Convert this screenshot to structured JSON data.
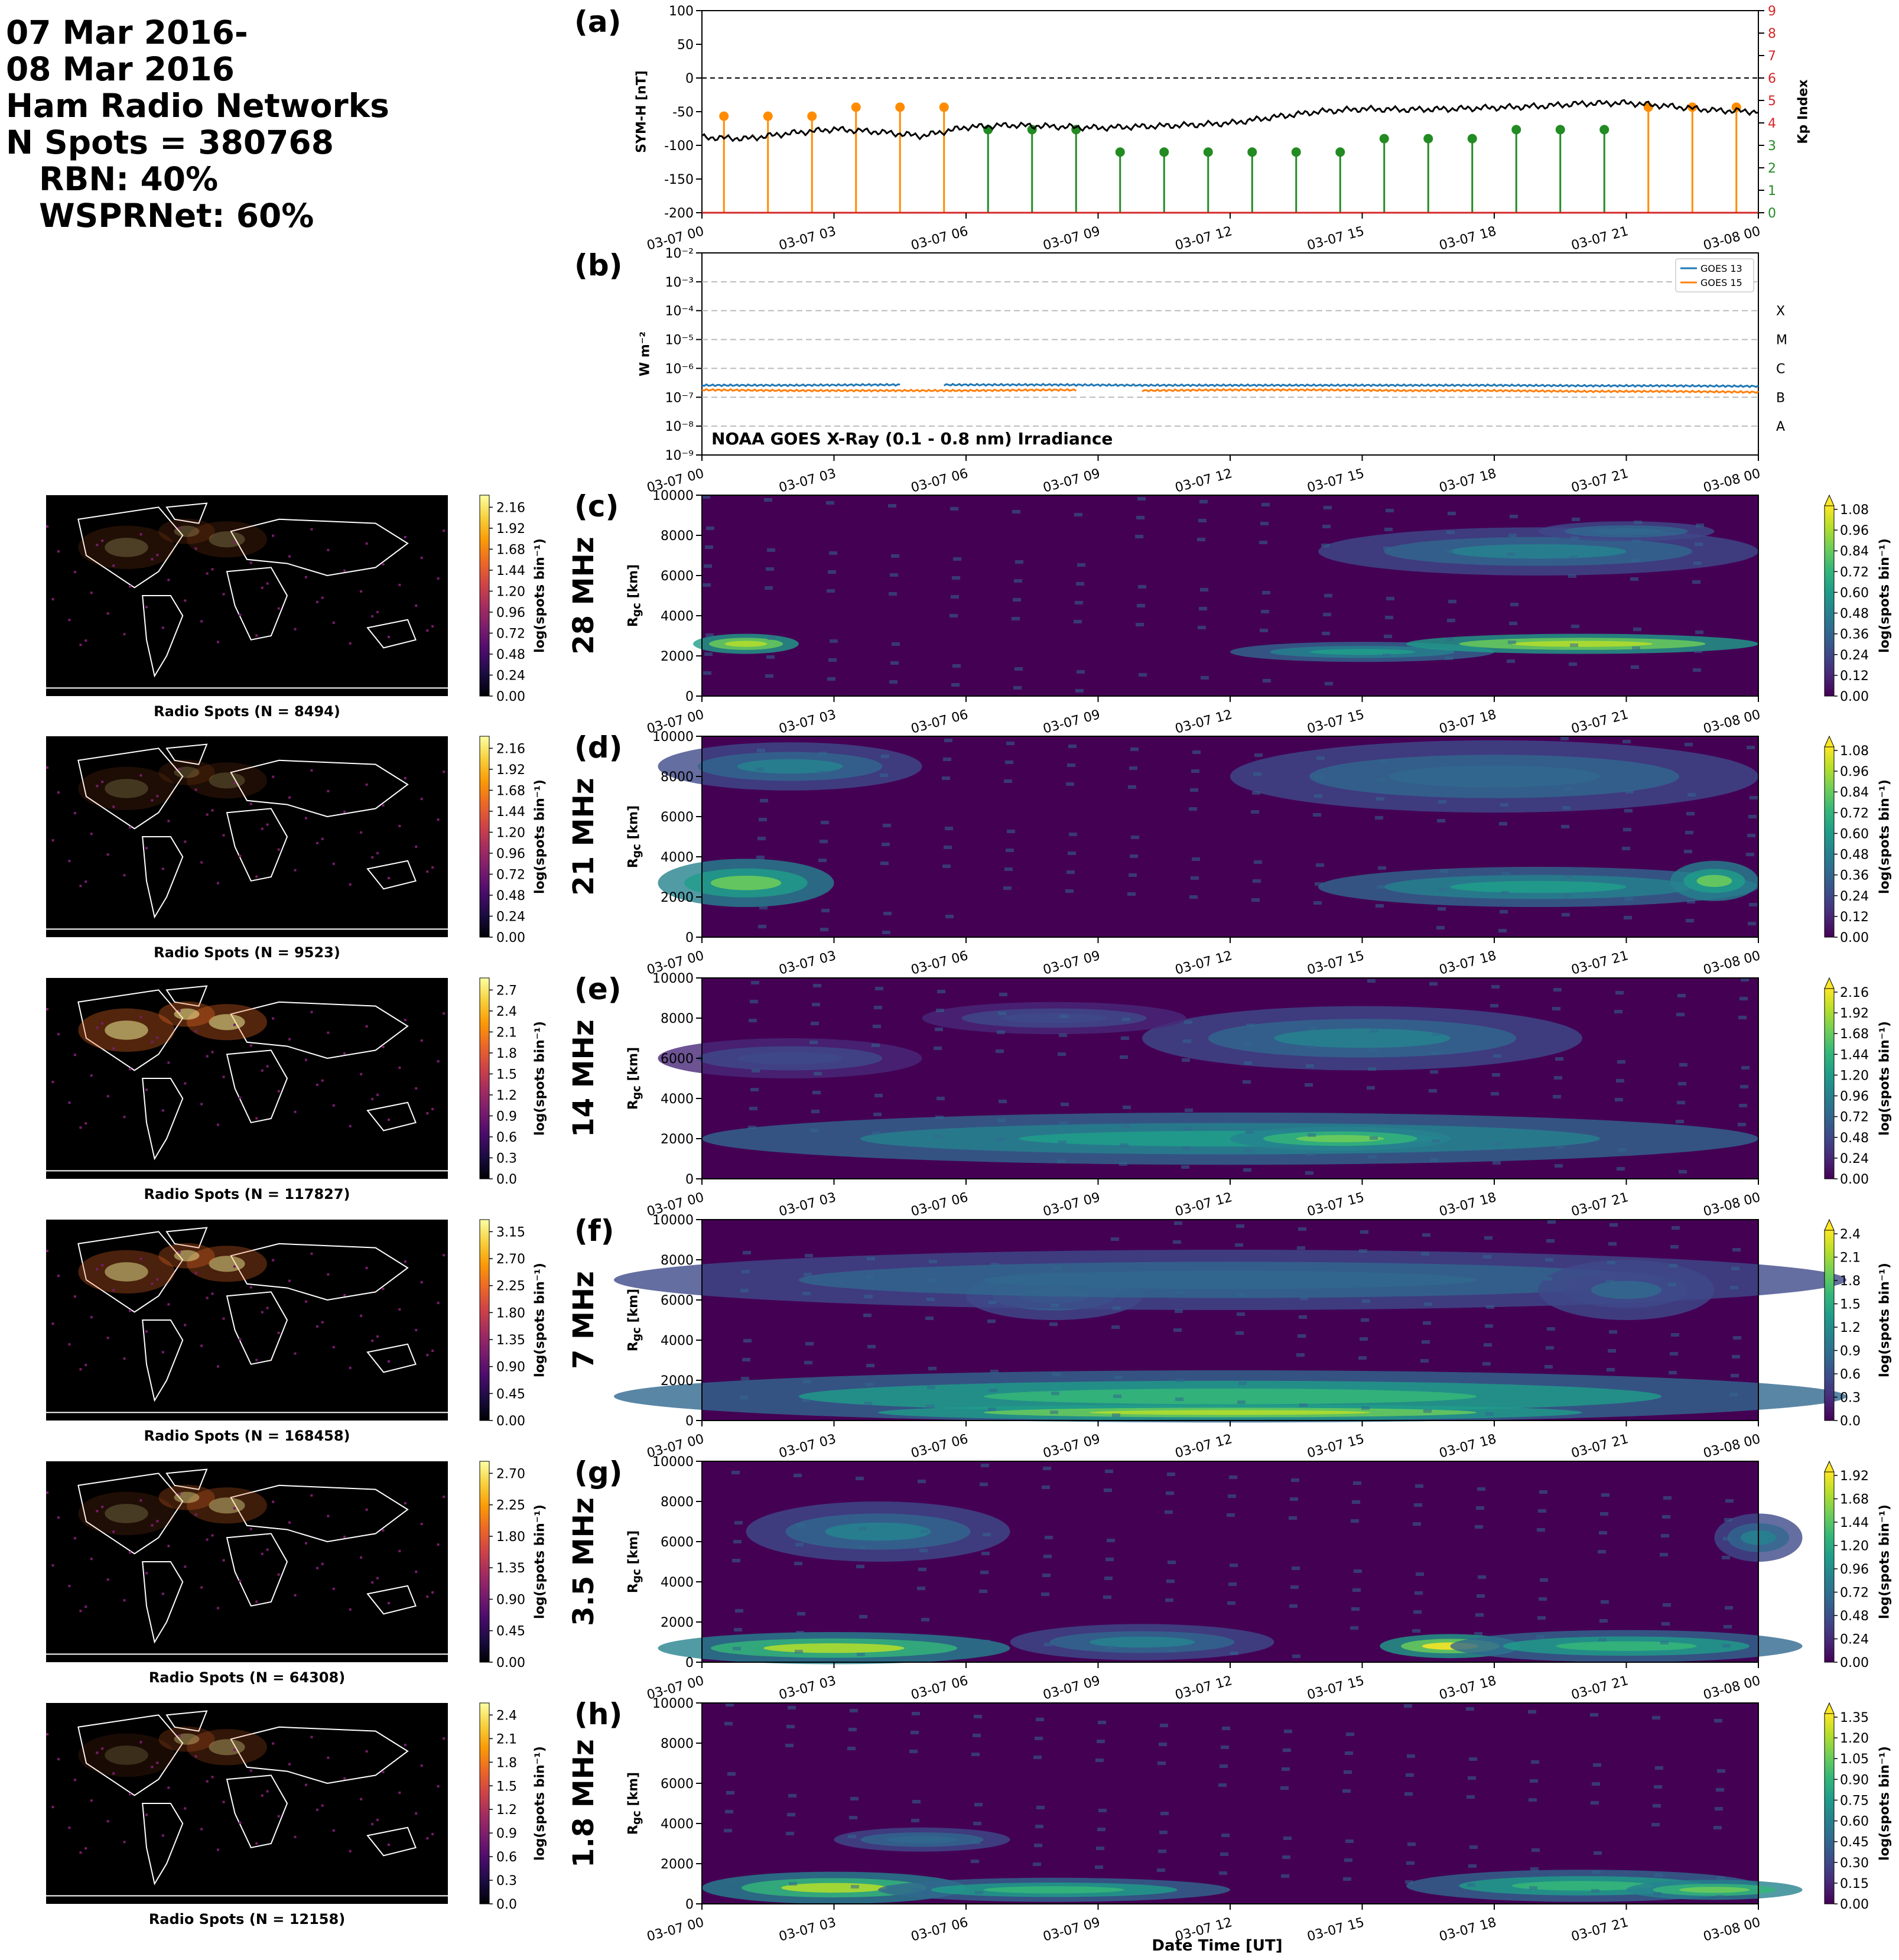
{
  "header": {
    "line1": "07 Mar 2016-",
    "line2": "08 Mar 2016",
    "line3": "Ham Radio Networks",
    "line4": "N Spots = 380768",
    "line5": "RBN: 40%",
    "line6": "WSPRNet: 60%"
  },
  "time_ticks": [
    "03-07 00",
    "03-07 03",
    "03-07 06",
    "03-07 09",
    "03-07 12",
    "03-07 15",
    "03-07 18",
    "03-07 21",
    "03-08 00"
  ],
  "xlabel": "Date Time [UT]",
  "colors": {
    "symh": "#000000",
    "kp_quiet": "#228b22",
    "kp_active": "#ff8c00",
    "goes13": "#1f77b4",
    "goes15": "#ff7f0e",
    "kp_axis": "#d62728",
    "viridis_low": "#440154",
    "viridis_high": "#fde725"
  },
  "panel_a": {
    "label": "(a)",
    "ylabel_left": "SYM-H [nT]",
    "ylabel_right": "Kp Index",
    "left_ticks": [
      "100",
      "50",
      "0",
      "-50",
      "-100",
      "-150",
      "-200"
    ],
    "right_ticks": [
      "9",
      "8",
      "7",
      "6",
      "5",
      "4",
      "3",
      "2",
      "1",
      "0"
    ]
  },
  "panel_b": {
    "label": "(b)",
    "ylabel": "W m⁻²",
    "yticks": [
      "10⁻²",
      "10⁻³",
      "10⁻⁴",
      "10⁻⁵",
      "10⁻⁶",
      "10⁻⁷",
      "10⁻⁸",
      "10⁻⁹"
    ],
    "classes": [
      "X",
      "M",
      "C",
      "B",
      "A"
    ],
    "title": "NOAA GOES X-Ray (0.1 - 0.8 nm) Irradiance",
    "legend": [
      "GOES 13",
      "GOES 15"
    ]
  },
  "band_panels": [
    {
      "label": "(c)",
      "band": "28 MHz",
      "map_title": "Radio Spots (N = 8494)",
      "cb_ticks": [
        "1.08",
        "0.96",
        "0.84",
        "0.72",
        "0.60",
        "0.48",
        "0.36",
        "0.24",
        "0.12",
        "0.00"
      ],
      "map_ticks": [
        "2.16",
        "1.92",
        "1.68",
        "1.44",
        "1.20",
        "0.96",
        "0.72",
        "0.48",
        "0.24",
        "0.00"
      ]
    },
    {
      "label": "(d)",
      "band": "21 MHz",
      "map_title": "Radio Spots (N = 9523)",
      "cb_ticks": [
        "1.08",
        "0.96",
        "0.84",
        "0.72",
        "0.60",
        "0.48",
        "0.36",
        "0.24",
        "0.12",
        "0.00"
      ],
      "map_ticks": [
        "2.16",
        "1.92",
        "1.68",
        "1.44",
        "1.20",
        "0.96",
        "0.72",
        "0.48",
        "0.24",
        "0.00"
      ]
    },
    {
      "label": "(e)",
      "band": "14 MHz",
      "map_title": "Radio Spots (N = 117827)",
      "cb_ticks": [
        "2.16",
        "1.92",
        "1.68",
        "1.44",
        "1.20",
        "0.96",
        "0.72",
        "0.48",
        "0.24",
        "0.00"
      ],
      "map_ticks": [
        "2.7",
        "2.4",
        "2.1",
        "1.8",
        "1.5",
        "1.2",
        "0.9",
        "0.6",
        "0.3",
        "0.0"
      ]
    },
    {
      "label": "(f)",
      "band": "7 MHz",
      "map_title": "Radio Spots (N = 168458)",
      "cb_ticks": [
        "2.4",
        "2.1",
        "1.8",
        "1.5",
        "1.2",
        "0.9",
        "0.6",
        "0.3",
        "0.0"
      ],
      "map_ticks": [
        "3.15",
        "2.70",
        "2.25",
        "1.80",
        "1.35",
        "0.90",
        "0.45",
        "0.00"
      ]
    },
    {
      "label": "(g)",
      "band": "3.5 MHz",
      "map_title": "Radio Spots (N = 64308)",
      "cb_ticks": [
        "1.92",
        "1.68",
        "1.44",
        "1.20",
        "0.96",
        "0.72",
        "0.48",
        "0.24",
        "0.00"
      ],
      "map_ticks": [
        "2.70",
        "2.25",
        "1.80",
        "1.35",
        "0.90",
        "0.45",
        "0.00"
      ]
    },
    {
      "label": "(h)",
      "band": "1.8 MHz",
      "map_title": "Radio Spots (N = 12158)",
      "cb_ticks": [
        "1.35",
        "1.20",
        "1.05",
        "0.90",
        "0.75",
        "0.60",
        "0.45",
        "0.30",
        "0.15",
        "0.00"
      ],
      "map_ticks": [
        "2.4",
        "2.1",
        "1.8",
        "1.5",
        "1.2",
        "0.9",
        "0.6",
        "0.3",
        "0.0"
      ]
    }
  ],
  "band_ylabel": "R",
  "band_ylabel_sub": "gc",
  "band_ylabel_unit": " [km]",
  "band_yticks": [
    "10000",
    "8000",
    "6000",
    "4000",
    "2000",
    "0"
  ],
  "cb_label": "log(spots bin⁻¹)",
  "chart_data": [
    {
      "type": "line",
      "title": "",
      "xlabel": "",
      "ylabel": "SYM-H [nT]",
      "ylim": [
        -200,
        100
      ],
      "x": [
        0,
        1,
        2,
        3,
        4,
        5,
        6,
        7,
        8,
        9,
        10,
        11,
        12,
        13,
        14,
        15,
        16,
        17,
        18,
        19,
        20,
        21,
        22,
        23,
        24
      ],
      "series": [
        {
          "name": "",
          "values": [
            -88,
            -90,
            -82,
            -76,
            -80,
            -86,
            -73,
            -70,
            -72,
            -74,
            -72,
            -70,
            -67,
            -58,
            -50,
            -46,
            -47,
            -46,
            -44,
            -42,
            -38,
            -37,
            -42,
            -48,
            -50
          ]
        }
      ],
      "secondary_y": {
        "label": "Kp Index",
        "ylim": [
          0,
          9
        ],
        "type": "stem",
        "x": [
          0,
          1,
          2,
          3,
          4,
          5,
          6,
          7,
          8,
          9,
          10,
          11,
          12,
          13,
          14,
          15,
          16,
          17,
          18,
          19,
          20,
          21,
          22,
          23
        ],
        "values": [
          4.3,
          4.3,
          4.3,
          4.7,
          4.7,
          4.7,
          3.7,
          3.7,
          3.7,
          2.7,
          2.7,
          2.7,
          2.7,
          2.7,
          2.7,
          3.3,
          3.3,
          3.3,
          3.7,
          3.7,
          3.7,
          4.7,
          4.7,
          4.7
        ]
      }
    },
    {
      "type": "line",
      "title": "NOAA GOES X-Ray (0.1 - 0.8 nm) Irradiance",
      "xlabel": "",
      "ylabel": "W m⁻²",
      "yscale": "log",
      "ylim": [
        1e-09,
        0.01
      ],
      "x": [
        0,
        2,
        4,
        6,
        8,
        10,
        12,
        14,
        16,
        18,
        20,
        22,
        24
      ],
      "series": [
        {
          "name": "GOES 13",
          "values": [
            2.6e-07,
            2.6e-07,
            2.7e-07,
            2.7e-07,
            2.7e-07,
            2.6e-07,
            2.6e-07,
            2.6e-07,
            2.6e-07,
            2.6e-07,
            2.5e-07,
            2.5e-07,
            2.4e-07
          ],
          "gaps": [
            [
              4.5,
              5.5
            ]
          ]
        },
        {
          "name": "GOES 15",
          "values": [
            1.8e-07,
            1.7e-07,
            1.7e-07,
            1.7e-07,
            1.8e-07,
            1.7e-07,
            1.8e-07,
            1.8e-07,
            1.7e-07,
            1.7e-07,
            1.6e-07,
            1.6e-07,
            1.5e-07
          ],
          "gaps": [
            [
              8.5,
              10
            ]
          ]
        }
      ]
    },
    {
      "type": "heatmap",
      "band": "28 MHz",
      "xlabel": "",
      "ylabel": "R_gc [km]",
      "ylim": [
        0,
        10000
      ],
      "vmax": 1.08,
      "x_hours": [
        0,
        24
      ],
      "blobs": [
        [
          1,
          2600,
          1.2,
          500,
          1
        ],
        [
          15,
          2200,
          3,
          500,
          0.6
        ],
        [
          20,
          2600,
          4,
          500,
          1
        ],
        [
          19,
          7200,
          5,
          1200,
          0.5
        ],
        [
          21,
          8200,
          2,
          500,
          0.4
        ]
      ]
    },
    {
      "type": "heatmap",
      "band": "21 MHz",
      "xlabel": "",
      "ylabel": "R_gc [km]",
      "ylim": [
        0,
        10000
      ],
      "vmax": 1.08,
      "x_hours": [
        0,
        24
      ],
      "blobs": [
        [
          1,
          2700,
          2,
          1200,
          0.8
        ],
        [
          2,
          8500,
          3,
          1200,
          0.5
        ],
        [
          19,
          2500,
          5,
          1000,
          0.6
        ],
        [
          18,
          8000,
          6,
          1800,
          0.4
        ],
        [
          23,
          2800,
          1,
          1000,
          0.8
        ]
      ]
    },
    {
      "type": "heatmap",
      "band": "14 MHz",
      "xlabel": "",
      "ylabel": "R_gc [km]",
      "ylim": [
        0,
        10000
      ],
      "vmax": 2.16,
      "x_hours": [
        0,
        24
      ],
      "blobs": [
        [
          12,
          2000,
          12,
          1300,
          1.2
        ],
        [
          14.5,
          2000,
          2.5,
          600,
          1.8
        ],
        [
          15,
          7000,
          5,
          1600,
          1.0
        ],
        [
          8,
          8000,
          3,
          800,
          0.6
        ],
        [
          2,
          6000,
          3,
          1000,
          0.6
        ]
      ]
    },
    {
      "type": "heatmap",
      "band": "7 MHz",
      "xlabel": "",
      "ylabel": "R_gc [km]",
      "ylim": [
        0,
        10000
      ],
      "vmax": 2.4,
      "x_hours": [
        0,
        24
      ],
      "blobs": [
        [
          12,
          1200,
          14,
          1300,
          1.6
        ],
        [
          12,
          400,
          8,
          400,
          2.2
        ],
        [
          8,
          6200,
          2,
          1200,
          1.0
        ],
        [
          12,
          7000,
          14,
          1500,
          0.9
        ],
        [
          21,
          6500,
          2,
          1500,
          0.8
        ]
      ]
    },
    {
      "type": "heatmap",
      "band": "3.5 MHz",
      "xlabel": "",
      "ylabel": "R_gc [km]",
      "ylim": [
        0,
        10000
      ],
      "vmax": 1.92,
      "x_hours": [
        0,
        24
      ],
      "blobs": [
        [
          3,
          700,
          4,
          800,
          1.6
        ],
        [
          17,
          800,
          1.6,
          600,
          1.9
        ],
        [
          21,
          800,
          4,
          800,
          1.3
        ],
        [
          4,
          6500,
          3,
          1500,
          0.9
        ],
        [
          10,
          1000,
          3,
          900,
          0.8
        ],
        [
          24,
          6200,
          1,
          1200,
          0.8
        ]
      ]
    },
    {
      "type": "heatmap",
      "band": "1.8 MHz",
      "xlabel": "",
      "ylabel": "R_gc [km]",
      "ylim": [
        0,
        10000
      ],
      "vmax": 1.35,
      "x_hours": [
        0,
        24
      ],
      "blobs": [
        [
          3,
          800,
          3,
          800,
          1.2
        ],
        [
          8,
          700,
          4,
          600,
          0.9
        ],
        [
          20,
          900,
          4,
          800,
          0.9
        ],
        [
          23,
          700,
          2,
          500,
          1.1
        ],
        [
          5,
          3200,
          2,
          600,
          0.5
        ]
      ]
    }
  ]
}
